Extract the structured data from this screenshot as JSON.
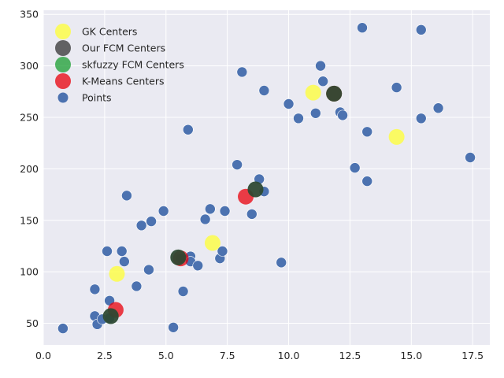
{
  "chart_data": {
    "type": "scatter",
    "title": "",
    "xlabel": "",
    "ylabel": "",
    "xlim": [
      0,
      18.2
    ],
    "ylim": [
      29,
      354
    ],
    "x_ticks": [
      0.0,
      2.5,
      5.0,
      7.5,
      10.0,
      12.5,
      15.0,
      17.5
    ],
    "x_tick_labels": [
      "0.0",
      "2.5",
      "5.0",
      "7.5",
      "10.0",
      "12.5",
      "15.0",
      "17.5"
    ],
    "y_ticks": [
      50,
      100,
      150,
      200,
      250,
      300,
      350
    ],
    "y_tick_labels": [
      "50",
      "100",
      "150",
      "200",
      "250",
      "300",
      "350"
    ],
    "grid": true,
    "background": "#eaeaf2",
    "legend_position": "top-left",
    "series": [
      {
        "name": "Points",
        "color": "#4c72b0",
        "marker_size": "small",
        "points": [
          [
            0.8,
            45
          ],
          [
            2.1,
            83
          ],
          [
            2.1,
            57
          ],
          [
            2.2,
            49
          ],
          [
            2.4,
            54
          ],
          [
            2.6,
            120
          ],
          [
            2.7,
            72
          ],
          [
            2.7,
            55
          ],
          [
            3.2,
            120
          ],
          [
            3.3,
            110
          ],
          [
            3.4,
            174
          ],
          [
            3.8,
            86
          ],
          [
            4.0,
            145
          ],
          [
            4.3,
            102
          ],
          [
            4.4,
            149
          ],
          [
            4.9,
            159
          ],
          [
            5.3,
            46
          ],
          [
            5.6,
            113
          ],
          [
            5.7,
            81
          ],
          [
            5.9,
            238
          ],
          [
            6.0,
            115
          ],
          [
            6.0,
            110
          ],
          [
            6.3,
            106
          ],
          [
            6.6,
            151
          ],
          [
            6.8,
            161
          ],
          [
            7.2,
            113
          ],
          [
            7.3,
            120
          ],
          [
            7.4,
            159
          ],
          [
            7.9,
            204
          ],
          [
            8.1,
            294
          ],
          [
            8.5,
            156
          ],
          [
            8.8,
            190
          ],
          [
            9.0,
            178
          ],
          [
            9.0,
            276
          ],
          [
            9.7,
            109
          ],
          [
            10.0,
            263
          ],
          [
            10.4,
            249
          ],
          [
            11.1,
            254
          ],
          [
            11.3,
            300
          ],
          [
            11.4,
            285
          ],
          [
            12.1,
            255
          ],
          [
            12.2,
            252
          ],
          [
            12.7,
            201
          ],
          [
            13.0,
            337
          ],
          [
            13.2,
            236
          ],
          [
            13.2,
            188
          ],
          [
            14.4,
            279
          ],
          [
            15.4,
            335
          ],
          [
            15.4,
            249
          ],
          [
            16.1,
            259
          ],
          [
            17.4,
            211
          ]
        ]
      },
      {
        "name": "K-Means Centers",
        "color": "#e8000b",
        "marker_size": "large",
        "points": [
          [
            2.95,
            63
          ],
          [
            5.6,
            113
          ],
          [
            8.25,
            173
          ],
          [
            11.85,
            273
          ]
        ]
      },
      {
        "name": "skfuzzy FCM Centers",
        "color": "#1a9e30",
        "marker_size": "large",
        "points": [
          [
            2.75,
            57
          ],
          [
            5.5,
            114
          ],
          [
            8.65,
            180
          ],
          [
            11.85,
            273
          ]
        ]
      },
      {
        "name": "Our FCM Centers",
        "color": "#333333",
        "marker_size": "large",
        "points": [
          [
            2.75,
            57
          ],
          [
            5.5,
            114
          ],
          [
            8.65,
            180
          ],
          [
            11.85,
            273
          ]
        ]
      },
      {
        "name": "GK Centers",
        "color": "#ffff33",
        "marker_size": "large",
        "points": [
          [
            3.0,
            98
          ],
          [
            6.9,
            128
          ],
          [
            11.0,
            274
          ],
          [
            14.4,
            231
          ]
        ]
      }
    ],
    "legend_order": [
      "GK Centers",
      "Our FCM Centers",
      "skfuzzy FCM Centers",
      "K-Means Centers",
      "Points"
    ]
  }
}
